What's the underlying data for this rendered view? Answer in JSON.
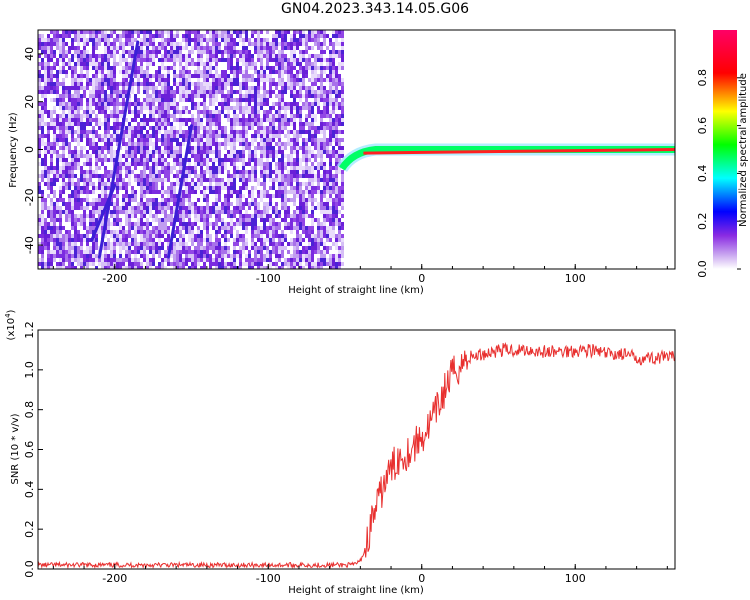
{
  "figure": {
    "title": "GN04.2023.343.14.05.G06"
  },
  "colorbar": {
    "label": "Normalized spectral amplitude",
    "ticks": [
      "0.0",
      "0.2",
      "0.4",
      "0.6",
      "0.8"
    ],
    "colors": [
      "#ffffff",
      "#8a2be2",
      "#0000ff",
      "#00ffff",
      "#00ff00",
      "#ffff00",
      "#ff0000",
      "#ff0066"
    ]
  },
  "chart_data": [
    {
      "type": "heatmap",
      "title": "",
      "xlabel": "Height of straight line (km)",
      "ylabel": "Frequency (Hz)",
      "xlim": [
        -250,
        165
      ],
      "ylim": [
        -50,
        50
      ],
      "xticks": [
        "-200",
        "-100",
        "0",
        "100"
      ],
      "yticks": [
        "40",
        "20",
        "0",
        "-20",
        "-40"
      ],
      "grid": false,
      "description_of_signal": {
        "noise_region_x": [
          -250,
          -52
        ],
        "ridge_x": [
          -52,
          165
        ],
        "ridge_frequency": 0
      }
    },
    {
      "type": "line",
      "title": "",
      "xlabel": "Height of straight line (km)",
      "ylabel": "SNR (10 * v/v)",
      "ylabel_multiplier": "(x10",
      "ylabel_exponent": "4",
      "ylabel_close": ")",
      "xlim": [
        -250,
        165
      ],
      "ylim": [
        0,
        1.2
      ],
      "xticks": [
        "-200",
        "-100",
        "0",
        "100"
      ],
      "yticks": [
        "0.0",
        "0.2",
        "0.4",
        "0.6",
        "0.8",
        "1.0",
        "1.2"
      ],
      "grid": false,
      "color": "#e8302f",
      "series": [
        {
          "x": [
            -250,
            -200,
            -150,
            -100,
            -60,
            -45,
            -40,
            -36,
            -32,
            -28,
            -25,
            -20,
            -15,
            -10,
            -5,
            0,
            5,
            10,
            15,
            20,
            30,
            40,
            50,
            60,
            70,
            80,
            90,
            100,
            110,
            120,
            130,
            140,
            150,
            165
          ],
          "values": [
            0.02,
            0.02,
            0.02,
            0.02,
            0.02,
            0.02,
            0.04,
            0.12,
            0.26,
            0.34,
            0.42,
            0.5,
            0.56,
            0.58,
            0.62,
            0.66,
            0.72,
            0.8,
            0.9,
            0.98,
            1.06,
            1.08,
            1.1,
            1.1,
            1.1,
            1.09,
            1.09,
            1.1,
            1.1,
            1.08,
            1.08,
            1.06,
            1.06,
            1.06
          ]
        }
      ]
    }
  ]
}
